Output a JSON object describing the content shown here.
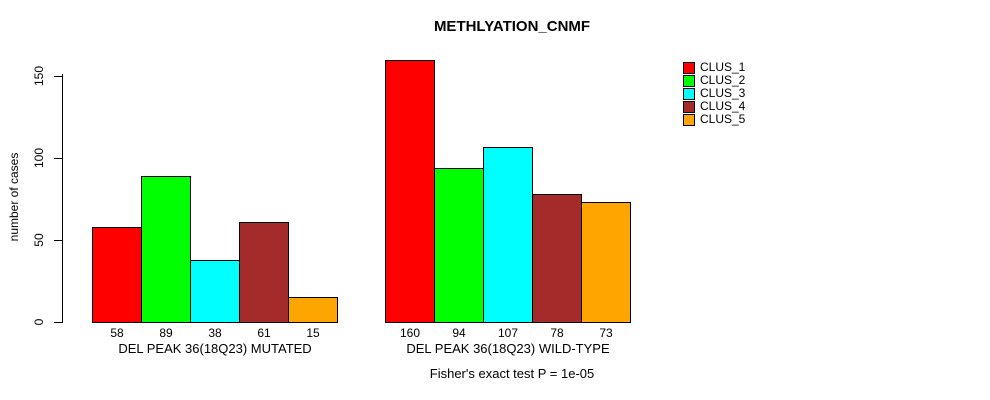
{
  "title": "METHLYATION_CNMF",
  "footer": "Fisher's exact test P = 1e-05",
  "y_axis": {
    "label": "number of cases",
    "ticks": [
      0,
      50,
      100,
      150
    ]
  },
  "legend": {
    "position": "top-right",
    "items": [
      {
        "label": "CLUS_1",
        "color": "#FF0000"
      },
      {
        "label": "CLUS_2",
        "color": "#00FF00"
      },
      {
        "label": "CLUS_3",
        "color": "#00FFFF"
      },
      {
        "label": "CLUS_4",
        "color": "#A52A2A"
      },
      {
        "label": "CLUS_5",
        "color": "#FFA500"
      }
    ]
  },
  "chart_data": {
    "type": "bar",
    "title": "METHLYATION_CNMF",
    "xlabel": "",
    "ylabel": "number of cases",
    "ylim": [
      0,
      150
    ],
    "yticks": [
      0,
      50,
      100,
      150
    ],
    "grid": false,
    "legend_position": "top-right",
    "series_labels": [
      "CLUS_1",
      "CLUS_2",
      "CLUS_3",
      "CLUS_4",
      "CLUS_5"
    ],
    "series_colors": [
      "#FF0000",
      "#00FF00",
      "#00FFFF",
      "#A52A2A",
      "#FFA500"
    ],
    "groups": [
      {
        "label": "DEL PEAK 36(18Q23) MUTATED",
        "values": [
          58,
          89,
          38,
          61,
          15
        ]
      },
      {
        "label": "DEL PEAK 36(18Q23) WILD-TYPE",
        "values": [
          160,
          94,
          107,
          78,
          73
        ]
      }
    ],
    "bar_value_labels_shown": true,
    "annotation": "Fisher's exact test P = 1e-05"
  }
}
